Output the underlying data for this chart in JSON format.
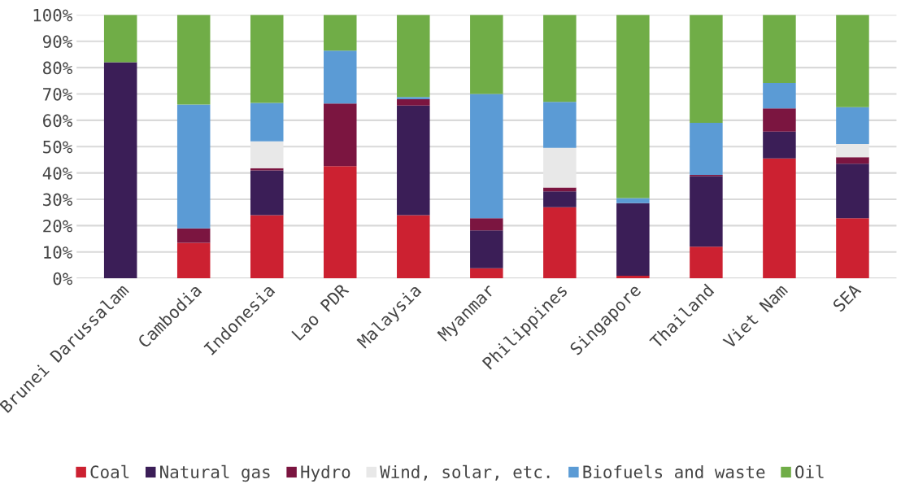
{
  "chart_data": {
    "type": "bar",
    "stacked": true,
    "categories": [
      "Brunei Darussalam",
      "Cambodia",
      "Indonesia",
      "Lao PDR",
      "Malaysia",
      "Myanmar",
      "Philippines",
      "Singapore",
      "Thailand",
      "Viet Nam",
      "SEA"
    ],
    "series": [
      {
        "name": "Coal",
        "color": "#cc2131",
        "values": [
          0,
          13.5,
          24,
          42.6,
          24,
          3.8,
          27,
          1,
          12,
          45.5,
          22.8
        ]
      },
      {
        "name": "Natural gas",
        "color": "#3b1e57",
        "values": [
          82,
          0,
          17,
          0,
          41.6,
          14.4,
          6,
          27.5,
          26.8,
          10.2,
          20.7
        ]
      },
      {
        "name": "Hydro",
        "color": "#7b1540",
        "values": [
          0,
          5.5,
          0.8,
          23.8,
          2.4,
          4.6,
          1.5,
          0,
          0.5,
          8.8,
          2.5
        ]
      },
      {
        "name": "Wind, solar, etc.",
        "color": "#e8e8e8",
        "values": [
          0,
          0,
          10.2,
          0,
          0,
          0,
          15,
          0,
          0,
          0,
          5
        ]
      },
      {
        "name": "Biofuels and waste",
        "color": "#5b9bd5",
        "values": [
          0,
          47,
          14.6,
          20,
          0.8,
          47.2,
          17.5,
          2,
          19.7,
          9.7,
          14
        ]
      },
      {
        "name": "Oil",
        "color": "#70ad47",
        "values": [
          18,
          34,
          33.4,
          13.6,
          31.2,
          30,
          33,
          69.5,
          41,
          25.8,
          35
        ]
      }
    ],
    "ylim": [
      0,
      100
    ],
    "yticks": [
      {
        "value": 0,
        "label": "0%"
      },
      {
        "value": 10,
        "label": "10%"
      },
      {
        "value": 20,
        "label": "20%"
      },
      {
        "value": 30,
        "label": "30%"
      },
      {
        "value": 40,
        "label": "40%"
      },
      {
        "value": 50,
        "label": "50%"
      },
      {
        "value": 60,
        "label": "60%"
      },
      {
        "value": 70,
        "label": "70%"
      },
      {
        "value": 80,
        "label": "80%"
      },
      {
        "value": 90,
        "label": "90%"
      },
      {
        "value": 100,
        "label": "100%"
      }
    ],
    "grid": "y",
    "legend": "bottom"
  }
}
